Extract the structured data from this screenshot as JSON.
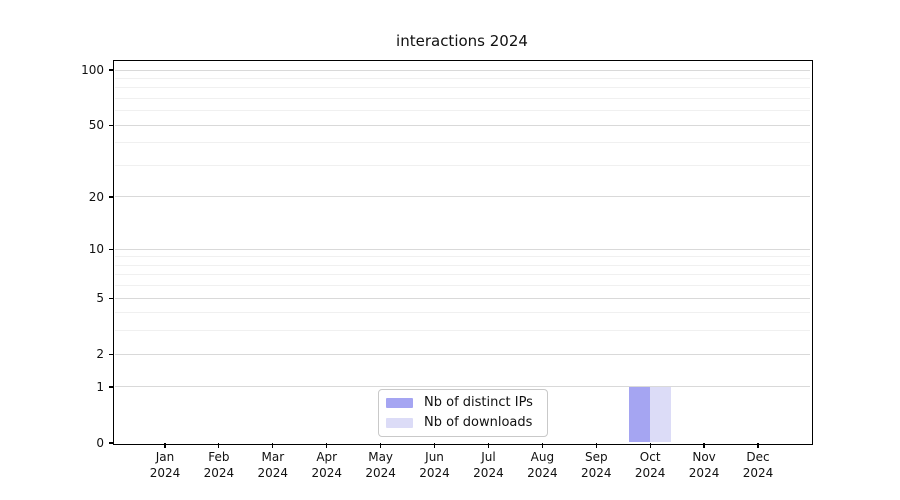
{
  "title": "interactions 2024",
  "chart_data": {
    "type": "bar",
    "title": "interactions 2024",
    "categories": [
      "Jan",
      "Feb",
      "Mar",
      "Apr",
      "May",
      "Jun",
      "Jul",
      "Aug",
      "Sep",
      "Oct",
      "Nov",
      "Dec"
    ],
    "category_year": "2024",
    "series": [
      {
        "name": "Nb of distinct IPs",
        "color": "#a5a5f2",
        "values": [
          0,
          0,
          0,
          0,
          0,
          0,
          0,
          0,
          0,
          1,
          0,
          0
        ]
      },
      {
        "name": "Nb of downloads",
        "color": "#dcdcf7",
        "values": [
          0,
          0,
          0,
          0,
          0,
          0,
          0,
          0,
          0,
          1,
          0,
          0
        ]
      }
    ],
    "xlabel": "",
    "ylabel": "",
    "y_axis": {
      "scale": "log1p",
      "major_ticks": [
        0,
        1,
        2,
        5,
        10,
        20,
        50,
        100
      ],
      "minor_ticks": [
        3,
        4,
        6,
        7,
        8,
        9,
        30,
        40,
        60,
        70,
        80,
        90
      ],
      "ylim": [
        0,
        114
      ]
    },
    "grid": "horizontal",
    "legend_position": "lower-center-inside"
  },
  "colors": {
    "bar_distinct_ips": "#a5a5f2",
    "bar_downloads": "#dcdcf7",
    "grid_major": "#d9d9d9",
    "grid_minor": "#f0f0f0",
    "axis": "#000000"
  }
}
